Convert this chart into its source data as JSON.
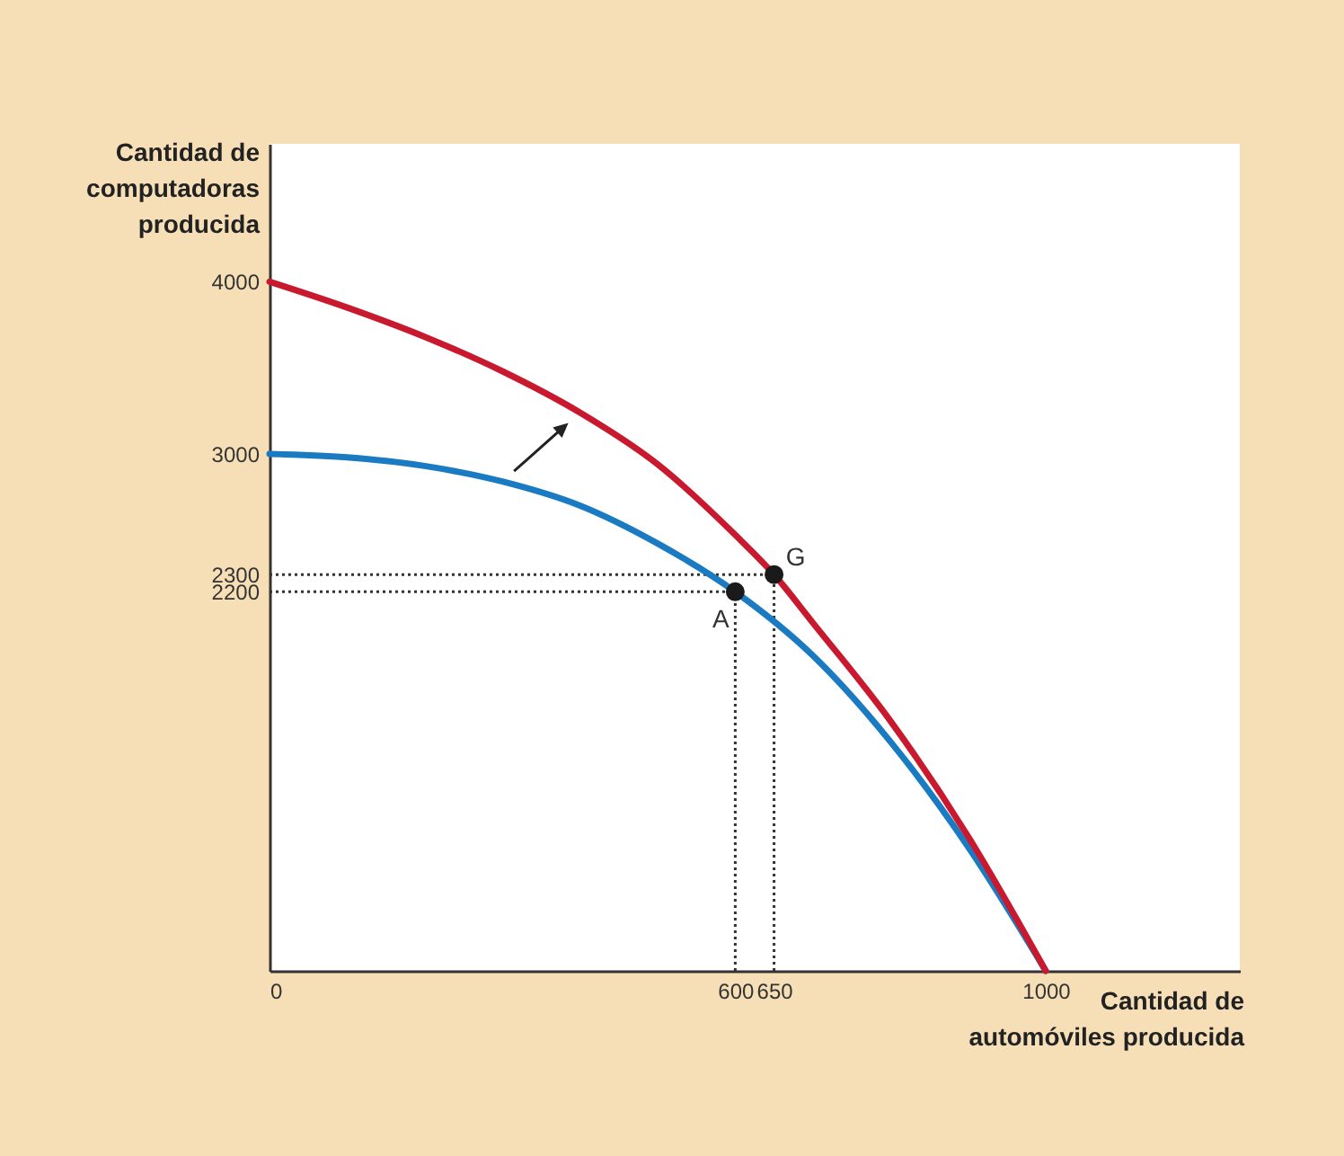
{
  "chart_data": {
    "type": "line",
    "xlabel": "Cantidad de\nautomóviles producida",
    "ylabel": "Cantidad de\ncomputadoras\nproducida",
    "xlim": [
      0,
      1250
    ],
    "ylim": [
      0,
      4800
    ],
    "xticks": [
      0,
      600,
      650,
      1000
    ],
    "yticks": [
      2200,
      2300,
      3000,
      4000
    ],
    "grid": false,
    "marker": "none",
    "line_style": "solid",
    "series": [
      {
        "color": "#1b7bc2",
        "x": [
          0,
          100,
          200,
          300,
          400,
          500,
          600,
          700,
          800,
          900,
          1000
        ],
        "values": [
          3000,
          2980,
          2930,
          2840,
          2700,
          2480,
          2200,
          1830,
          1330,
          720,
          0
        ]
      },
      {
        "color": "#c8192e",
        "x": [
          0,
          100,
          200,
          300,
          400,
          500,
          600,
          650,
          700,
          800,
          900,
          1000
        ],
        "values": [
          4000,
          3850,
          3680,
          3480,
          3240,
          2940,
          2530,
          2300,
          2020,
          1450,
          780,
          0
        ]
      },
      {
        "type": "scatter",
        "color": "#1a1a1a",
        "marker": "circle",
        "x": [
          600,
          650
        ],
        "values": [
          2200,
          2300
        ]
      }
    ],
    "ref_lines": [
      {
        "axis": "y",
        "value": 2300,
        "line_style": "dotted"
      },
      {
        "axis": "y",
        "value": 2200,
        "line_style": "dotted"
      },
      {
        "axis": "x",
        "value": 600,
        "line_style": "dotted"
      },
      {
        "axis": "x",
        "value": 650,
        "line_style": "dotted"
      }
    ],
    "annotations": [
      {
        "text": "A",
        "x": 600,
        "y": 2200
      },
      {
        "text": "G",
        "x": 650,
        "y": 2300
      }
    ]
  }
}
